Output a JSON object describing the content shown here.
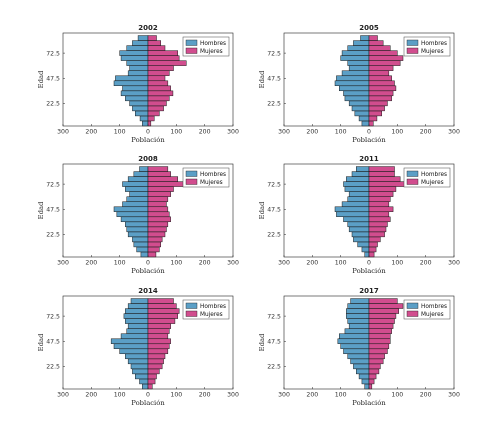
{
  "chart_data": [
    {
      "type": "bar",
      "orientation": "horizontal-population-pyramid",
      "title": "2002",
      "xlabel": "Población",
      "ylabel": "Edad",
      "xlim": [
        -300,
        300
      ],
      "xticks": [
        "300",
        "200",
        "100",
        "0",
        "100",
        "200",
        "300"
      ],
      "yticks": [
        "22.5",
        "47.5",
        "72.5"
      ],
      "categories": [
        2.5,
        7.5,
        12.5,
        17.5,
        22.5,
        27.5,
        32.5,
        37.5,
        42.5,
        47.5,
        52.5,
        57.5,
        62.5,
        67.5,
        72.5,
        77.5,
        82.5,
        87.5
      ],
      "series": [
        {
          "name": "Hombres",
          "color": "#5b9fc6",
          "values": [
            20,
            28,
            45,
            55,
            65,
            80,
            95,
            90,
            120,
            115,
            70,
            65,
            75,
            95,
            100,
            75,
            55,
            35
          ]
        },
        {
          "name": "Mujeres",
          "color": "#d14d8e",
          "values": [
            10,
            22,
            40,
            55,
            65,
            75,
            88,
            80,
            70,
            60,
            75,
            90,
            135,
            110,
            105,
            60,
            45,
            30
          ]
        }
      ],
      "legend": "top-right",
      "grid": false
    },
    {
      "type": "bar",
      "orientation": "horizontal-population-pyramid",
      "title": "2005",
      "xlabel": "Población",
      "ylabel": "Edad",
      "xlim": [
        -300,
        300
      ],
      "xticks": [
        "300",
        "200",
        "100",
        "0",
        "100",
        "200",
        "300"
      ],
      "yticks": [
        "22.5",
        "47.5",
        "72.5"
      ],
      "categories": [
        2.5,
        7.5,
        12.5,
        17.5,
        22.5,
        27.5,
        32.5,
        37.5,
        42.5,
        47.5,
        52.5,
        57.5,
        62.5,
        67.5,
        72.5,
        77.5,
        82.5,
        87.5
      ],
      "series": [
        {
          "name": "Hombres",
          "color": "#5b9fc6",
          "values": [
            25,
            35,
            50,
            60,
            70,
            85,
            90,
            105,
            120,
            115,
            95,
            70,
            75,
            100,
            95,
            75,
            55,
            30
          ]
        },
        {
          "name": "Mujeres",
          "color": "#d14d8e",
          "values": [
            15,
            28,
            45,
            55,
            65,
            80,
            85,
            95,
            90,
            80,
            70,
            85,
            110,
            120,
            100,
            75,
            50,
            30
          ]
        }
      ],
      "legend": "top-right",
      "grid": false
    },
    {
      "type": "bar",
      "orientation": "horizontal-population-pyramid",
      "title": "2008",
      "xlabel": "Población",
      "ylabel": "Edad",
      "xlim": [
        -300,
        300
      ],
      "xticks": [
        "300",
        "200",
        "100",
        "0",
        "100",
        "200",
        "300"
      ],
      "yticks": [
        "22.5",
        "47.5",
        "72.5"
      ],
      "categories": [
        2.5,
        7.5,
        12.5,
        17.5,
        22.5,
        27.5,
        32.5,
        37.5,
        42.5,
        47.5,
        52.5,
        57.5,
        62.5,
        67.5,
        72.5,
        77.5,
        82.5,
        87.5
      ],
      "series": [
        {
          "name": "Hombres",
          "color": "#5b9fc6",
          "values": [
            25,
            40,
            50,
            55,
            70,
            75,
            80,
            95,
            110,
            120,
            90,
            75,
            65,
            80,
            90,
            70,
            50,
            30
          ]
        },
        {
          "name": "Mujeres",
          "color": "#d14d8e",
          "values": [
            28,
            40,
            45,
            50,
            60,
            65,
            70,
            80,
            75,
            70,
            65,
            70,
            80,
            90,
            130,
            105,
            80,
            70
          ]
        }
      ],
      "legend": "top-right",
      "grid": false
    },
    {
      "type": "bar",
      "orientation": "horizontal-population-pyramid",
      "title": "2011",
      "xlabel": "Población",
      "ylabel": "Edad",
      "xlim": [
        -300,
        300
      ],
      "xticks": [
        "300",
        "200",
        "100",
        "0",
        "100",
        "200",
        "300"
      ],
      "yticks": [
        "22.5",
        "47.5",
        "72.5"
      ],
      "categories": [
        2.5,
        7.5,
        12.5,
        17.5,
        22.5,
        27.5,
        32.5,
        37.5,
        42.5,
        47.5,
        52.5,
        57.5,
        62.5,
        67.5,
        72.5,
        77.5,
        82.5,
        87.5
      ],
      "series": [
        {
          "name": "Hombres",
          "color": "#5b9fc6",
          "values": [
            15,
            25,
            40,
            55,
            60,
            70,
            75,
            90,
            115,
            120,
            95,
            75,
            70,
            85,
            90,
            80,
            60,
            45
          ]
        },
        {
          "name": "Mujeres",
          "color": "#d14d8e",
          "values": [
            18,
            25,
            30,
            40,
            55,
            60,
            65,
            75,
            70,
            85,
            70,
            75,
            85,
            95,
            125,
            110,
            90,
            90
          ]
        }
      ],
      "legend": "top-right",
      "grid": false
    },
    {
      "type": "bar",
      "orientation": "horizontal-population-pyramid",
      "title": "2014",
      "xlabel": "Población",
      "ylabel": "Edad",
      "xlim": [
        -300,
        300
      ],
      "xticks": [
        "300",
        "200",
        "100",
        "0",
        "100",
        "200",
        "300"
      ],
      "yticks": [
        "22.5",
        "47.5",
        "72.5"
      ],
      "categories": [
        2.5,
        7.5,
        12.5,
        17.5,
        22.5,
        27.5,
        32.5,
        37.5,
        42.5,
        47.5,
        52.5,
        57.5,
        62.5,
        67.5,
        72.5,
        77.5,
        82.5,
        87.5
      ],
      "series": [
        {
          "name": "Hombres",
          "color": "#5b9fc6",
          "values": [
            20,
            30,
            45,
            55,
            60,
            70,
            80,
            100,
            120,
            130,
            95,
            75,
            70,
            80,
            85,
            80,
            70,
            60
          ]
        },
        {
          "name": "Mujeres",
          "color": "#d14d8e",
          "values": [
            15,
            25,
            30,
            40,
            50,
            55,
            60,
            70,
            75,
            80,
            70,
            75,
            80,
            95,
            105,
            110,
            100,
            90
          ]
        }
      ],
      "legend": "top-right",
      "grid": false
    },
    {
      "type": "bar",
      "orientation": "horizontal-population-pyramid",
      "title": "2017",
      "xlabel": "Población",
      "ylabel": "Edad",
      "xlim": [
        -300,
        300
      ],
      "xticks": [
        "300",
        "200",
        "100",
        "0",
        "100",
        "200",
        "300"
      ],
      "yticks": [
        "22.5",
        "47.5",
        "72.5"
      ],
      "categories": [
        2.5,
        7.5,
        12.5,
        17.5,
        22.5,
        27.5,
        32.5,
        37.5,
        42.5,
        47.5,
        52.5,
        57.5,
        62.5,
        67.5,
        72.5,
        77.5,
        82.5,
        87.5
      ],
      "series": [
        {
          "name": "Hombres",
          "color": "#5b9fc6",
          "values": [
            15,
            25,
            35,
            45,
            55,
            65,
            75,
            90,
            100,
            110,
            105,
            85,
            70,
            75,
            80,
            80,
            75,
            65
          ]
        },
        {
          "name": "Mujeres",
          "color": "#d14d8e",
          "values": [
            10,
            18,
            25,
            35,
            40,
            50,
            55,
            65,
            70,
            75,
            75,
            80,
            85,
            90,
            95,
            105,
            120,
            100
          ]
        }
      ],
      "legend": "top-right",
      "grid": false
    }
  ]
}
